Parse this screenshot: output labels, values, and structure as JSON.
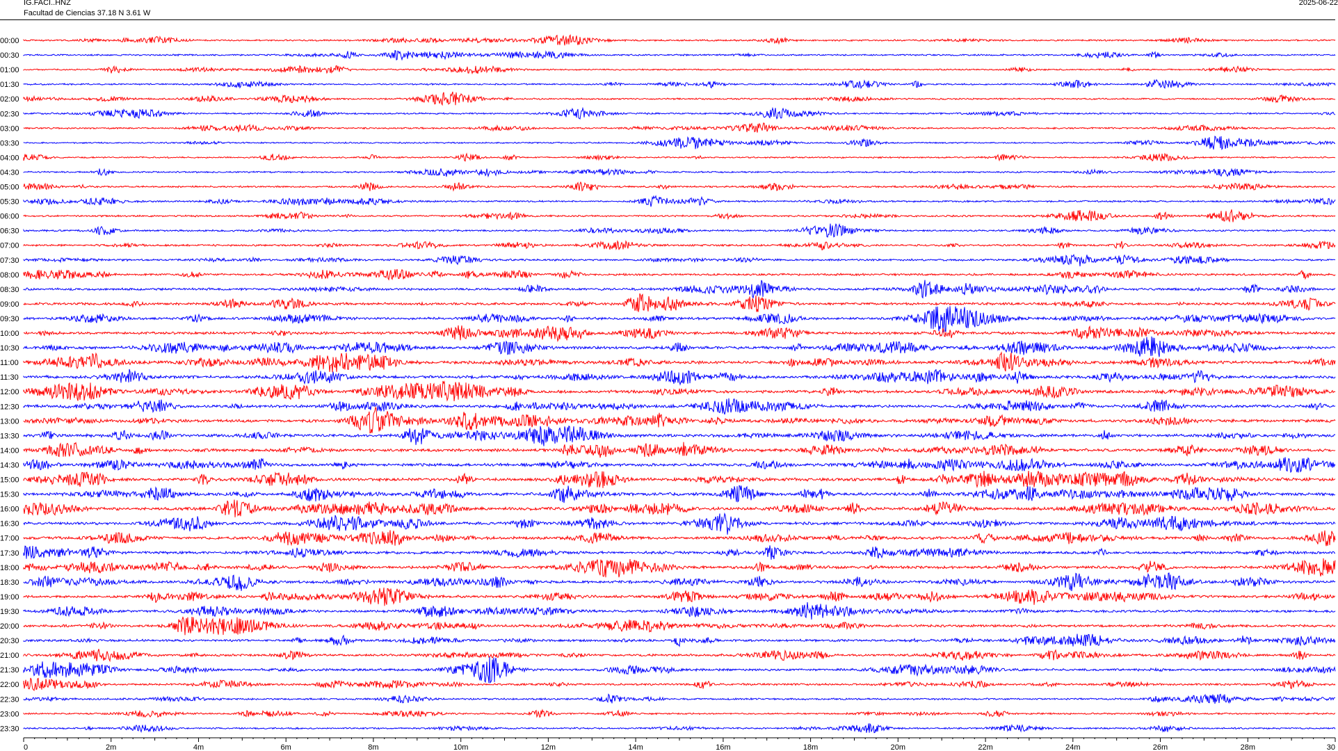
{
  "header": {
    "station_code": "IG.FACI..HNZ",
    "station_info": "Facultad de Ciencias  37.18 N 3.61 W",
    "date": "2025-06-22"
  },
  "chart_data": {
    "type": "line",
    "title": "",
    "xlabel": "",
    "ylabel": "",
    "x_unit": "minutes",
    "xlim": [
      0,
      30
    ],
    "x_ticks": [
      {
        "value": 0,
        "label": "0"
      },
      {
        "value": 2,
        "label": "2m"
      },
      {
        "value": 4,
        "label": "4m"
      },
      {
        "value": 6,
        "label": "6m"
      },
      {
        "value": 8,
        "label": "8m"
      },
      {
        "value": 10,
        "label": "10m"
      },
      {
        "value": 12,
        "label": "12m"
      },
      {
        "value": 14,
        "label": "14m"
      },
      {
        "value": 16,
        "label": "16m"
      },
      {
        "value": 18,
        "label": "18m"
      },
      {
        "value": 20,
        "label": "20m"
      },
      {
        "value": 22,
        "label": "22m"
      },
      {
        "value": 24,
        "label": "24m"
      },
      {
        "value": 26,
        "label": "26m"
      },
      {
        "value": 28,
        "label": "28m"
      },
      {
        "value": 30,
        "label": "30"
      }
    ],
    "grid": false,
    "legend": "none",
    "trace_colors": [
      "#ff0000",
      "#0000ff"
    ],
    "traces": [
      {
        "label": "00:00",
        "color": "#ff0000",
        "activity": 0.25
      },
      {
        "label": "00:30",
        "color": "#0000ff",
        "activity": 0.25
      },
      {
        "label": "01:00",
        "color": "#ff0000",
        "activity": 0.2
      },
      {
        "label": "01:30",
        "color": "#0000ff",
        "activity": 0.25
      },
      {
        "label": "02:00",
        "color": "#ff0000",
        "activity": 0.25
      },
      {
        "label": "02:30",
        "color": "#0000ff",
        "activity": 0.25
      },
      {
        "label": "03:00",
        "color": "#ff0000",
        "activity": 0.25
      },
      {
        "label": "03:30",
        "color": "#0000ff",
        "activity": 0.2
      },
      {
        "label": "04:00",
        "color": "#ff0000",
        "activity": 0.2
      },
      {
        "label": "04:30",
        "color": "#0000ff",
        "activity": 0.25
      },
      {
        "label": "05:00",
        "color": "#ff0000",
        "activity": 0.3
      },
      {
        "label": "05:30",
        "color": "#0000ff",
        "activity": 0.3
      },
      {
        "label": "06:00",
        "color": "#ff0000",
        "activity": 0.3
      },
      {
        "label": "06:30",
        "color": "#0000ff",
        "activity": 0.3
      },
      {
        "label": "07:00",
        "color": "#ff0000",
        "activity": 0.35
      },
      {
        "label": "07:30",
        "color": "#0000ff",
        "activity": 0.35
      },
      {
        "label": "08:00",
        "color": "#ff0000",
        "activity": 0.4
      },
      {
        "label": "08:30",
        "color": "#0000ff",
        "activity": 0.45
      },
      {
        "label": "09:00",
        "color": "#ff0000",
        "activity": 0.5
      },
      {
        "label": "09:30",
        "color": "#0000ff",
        "activity": 0.5
      },
      {
        "label": "10:00",
        "color": "#ff0000",
        "activity": 0.55
      },
      {
        "label": "10:30",
        "color": "#0000ff",
        "activity": 0.6
      },
      {
        "label": "11:00",
        "color": "#ff0000",
        "activity": 0.65
      },
      {
        "label": "11:30",
        "color": "#0000ff",
        "activity": 0.65
      },
      {
        "label": "12:00",
        "color": "#ff0000",
        "activity": 0.65
      },
      {
        "label": "12:30",
        "color": "#0000ff",
        "activity": 0.6
      },
      {
        "label": "13:00",
        "color": "#ff0000",
        "activity": 0.65
      },
      {
        "label": "13:30",
        "color": "#0000ff",
        "activity": 0.65
      },
      {
        "label": "14:00",
        "color": "#ff0000",
        "activity": 0.65
      },
      {
        "label": "14:30",
        "color": "#0000ff",
        "activity": 0.6
      },
      {
        "label": "15:00",
        "color": "#ff0000",
        "activity": 0.7
      },
      {
        "label": "15:30",
        "color": "#0000ff",
        "activity": 0.7
      },
      {
        "label": "16:00",
        "color": "#ff0000",
        "activity": 0.65
      },
      {
        "label": "16:30",
        "color": "#0000ff",
        "activity": 0.6
      },
      {
        "label": "17:00",
        "color": "#ff0000",
        "activity": 0.6
      },
      {
        "label": "17:30",
        "color": "#0000ff",
        "activity": 0.55
      },
      {
        "label": "18:00",
        "color": "#ff0000",
        "activity": 0.6
      },
      {
        "label": "18:30",
        "color": "#0000ff",
        "activity": 0.6
      },
      {
        "label": "19:00",
        "color": "#ff0000",
        "activity": 0.55
      },
      {
        "label": "19:30",
        "color": "#0000ff",
        "activity": 0.5
      },
      {
        "label": "20:00",
        "color": "#ff0000",
        "activity": 0.5
      },
      {
        "label": "20:30",
        "color": "#0000ff",
        "activity": 0.45
      },
      {
        "label": "21:00",
        "color": "#ff0000",
        "activity": 0.45
      },
      {
        "label": "21:30",
        "color": "#0000ff",
        "activity": 0.45
      },
      {
        "label": "22:00",
        "color": "#ff0000",
        "activity": 0.35
      },
      {
        "label": "22:30",
        "color": "#0000ff",
        "activity": 0.3
      },
      {
        "label": "23:00",
        "color": "#ff0000",
        "activity": 0.25
      },
      {
        "label": "23:30",
        "color": "#0000ff",
        "activity": 0.25
      }
    ]
  }
}
